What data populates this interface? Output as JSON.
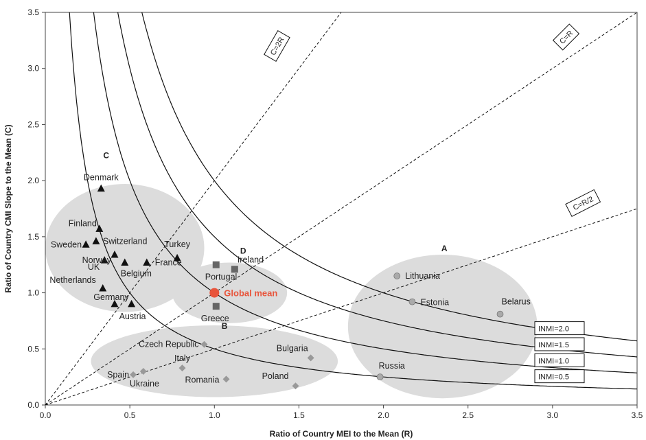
{
  "chart_data": {
    "type": "scatter",
    "xlabel": "Ratio of Country MEI to the Mean (R)",
    "ylabel": "Ratio of Country CMI Slope to the Mean (C)",
    "xlim": [
      0,
      3.5
    ],
    "ylim": [
      0,
      3.5
    ],
    "xticks": [
      "0.0",
      "0.5",
      "1.0",
      "1.5",
      "2.0",
      "2.5",
      "3.0",
      "3.5"
    ],
    "yticks": [
      "0.0",
      "0.5",
      "1.0",
      "1.5",
      "2.0",
      "2.5",
      "3.0",
      "3.5"
    ],
    "grid": false,
    "groups": [
      {
        "label": "C",
        "center": [
          0.47,
          1.4
        ],
        "radius": [
          0.47,
          0.57
        ],
        "fill": "#dcdcdc"
      },
      {
        "label": "D",
        "center": [
          1.09,
          1.0
        ],
        "radius": [
          0.34,
          0.27
        ],
        "fill": "#dcdcdc"
      },
      {
        "label": "B",
        "center": [
          1.0,
          0.39
        ],
        "radius": [
          0.73,
          0.32
        ],
        "fill": "#dcdcdc"
      },
      {
        "label": "A",
        "center": [
          2.35,
          0.7
        ],
        "radius": [
          0.56,
          0.64
        ],
        "fill": "#dcdcdc"
      }
    ],
    "group_label_positions": [
      {
        "label": "C",
        "x": 0.36,
        "y": 2.2
      },
      {
        "label": "D",
        "x": 1.17,
        "y": 1.35
      },
      {
        "label": "B",
        "x": 1.06,
        "y": 0.68
      },
      {
        "label": "A",
        "x": 2.36,
        "y": 1.37
      }
    ],
    "series": [
      {
        "name": "Group C",
        "marker": "triangle",
        "color": "#111111",
        "points": [
          {
            "label": "Denmark",
            "x": 0.33,
            "y": 1.93
          },
          {
            "label": "Finland",
            "x": 0.32,
            "y": 1.57
          },
          {
            "label": "Sweden",
            "x": 0.24,
            "y": 1.43
          },
          {
            "label": "Switzerland",
            "x": 0.3,
            "y": 1.46
          },
          {
            "label": "Norway",
            "x": 0.41,
            "y": 1.34
          },
          {
            "label": "UK",
            "x": 0.35,
            "y": 1.29
          },
          {
            "label": "France",
            "x": 0.6,
            "y": 1.27
          },
          {
            "label": "Belgium",
            "x": 0.47,
            "y": 1.27
          },
          {
            "label": "Turkey",
            "x": 0.78,
            "y": 1.31
          },
          {
            "label": "Netherlands",
            "x": 0.34,
            "y": 1.04
          },
          {
            "label": "Germany",
            "x": 0.41,
            "y": 0.9
          },
          {
            "label": "Austria",
            "x": 0.51,
            "y": 0.9
          }
        ]
      },
      {
        "name": "Group D",
        "marker": "square",
        "color": "#666666",
        "points": [
          {
            "label": "Portugal",
            "x": 1.01,
            "y": 1.25
          },
          {
            "label": "Ireland",
            "x": 1.12,
            "y": 1.21
          },
          {
            "label": "Greece",
            "x": 1.01,
            "y": 0.88
          }
        ]
      },
      {
        "name": "Group B",
        "marker": "diamond",
        "color": "#999999",
        "points": [
          {
            "label": "Czech Republic",
            "x": 0.94,
            "y": 0.54
          },
          {
            "label": "Bulgaria",
            "x": 1.57,
            "y": 0.42
          },
          {
            "label": "Italy",
            "x": 0.81,
            "y": 0.33
          },
          {
            "label": "Spain",
            "x": 0.52,
            "y": 0.27
          },
          {
            "label": "Ukraine",
            "x": 0.58,
            "y": 0.3
          },
          {
            "label": "Romania",
            "x": 1.07,
            "y": 0.23
          },
          {
            "label": "Poland",
            "x": 1.48,
            "y": 0.17
          }
        ]
      },
      {
        "name": "Group A",
        "marker": "circle",
        "color": "#aaaaaa",
        "points": [
          {
            "label": "Lithuania",
            "x": 2.08,
            "y": 1.15
          },
          {
            "label": "Estonia",
            "x": 2.17,
            "y": 0.92
          },
          {
            "label": "Belarus",
            "x": 2.69,
            "y": 0.81
          },
          {
            "label": "Russia",
            "x": 1.98,
            "y": 0.25
          }
        ]
      }
    ],
    "global_mean": {
      "label": "Global mean",
      "x": 1.0,
      "y": 1.0,
      "color": "#e8553c"
    },
    "inmi_curves": [
      {
        "label": "INMI=2.0",
        "value": 2.0
      },
      {
        "label": "INMI=1.5",
        "value": 1.5
      },
      {
        "label": "INMI=1.0",
        "value": 1.0
      },
      {
        "label": "INMI=0.5",
        "value": 0.5
      }
    ],
    "ratio_lines": [
      {
        "label": "C=2R",
        "slope": 2
      },
      {
        "label": "C=R",
        "slope": 1
      },
      {
        "label": "C=R/2",
        "slope": 0.5
      }
    ]
  }
}
